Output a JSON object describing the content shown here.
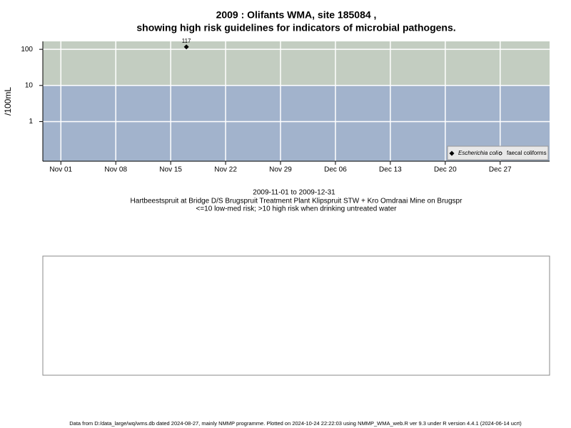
{
  "chart_data": {
    "type": "scatter",
    "title": "2009 : Olifants WMA, site 185084 ,",
    "title2": "showing high risk guidelines for indicators of microbial pathogens.",
    "ylabel": "/100mL",
    "log_y": true,
    "ylim": [
      0.08,
      166
    ],
    "yticks": [
      1,
      10,
      100
    ],
    "threshold": 10,
    "band_colors": {
      "high": "#c3cdc1",
      "low": "#a2b3cc"
    },
    "xlim": [
      -2.3,
      62.3
    ],
    "xticks": [
      {
        "value": 0,
        "label": "Nov 01"
      },
      {
        "value": 7,
        "label": "Nov 08"
      },
      {
        "value": 14,
        "label": "Nov 15"
      },
      {
        "value": 21,
        "label": "Nov 22"
      },
      {
        "value": 28,
        "label": "Nov 29"
      },
      {
        "value": 35,
        "label": "Dec 06"
      },
      {
        "value": 42,
        "label": "Dec 13"
      },
      {
        "value": 49,
        "label": "Dec 20"
      },
      {
        "value": 56,
        "label": "Dec 27"
      }
    ],
    "grid": true,
    "legend": "bottom-right",
    "series": [
      {
        "name": "Escherichia coli",
        "color": "#000000",
        "marker": "diamond",
        "x": [
          16
        ],
        "values": [
          117
        ],
        "value_labels": [
          "117"
        ]
      },
      {
        "name": "faecal coliforms",
        "color": "#000000",
        "marker": "open-circle",
        "x": [],
        "values": []
      }
    ],
    "subtitle": [
      "2009-11-01 to 2009-12-31",
      "Hartbeestspruit at Bridge D/S Brugspruit Treatment Plant Klipspruit STW + Kro Omdraai Mine on Brugspr",
      "<=10 low-med risk; >10 high risk when drinking untreated water"
    ],
    "footer": "Data from D:/data_large/wq/wms.db dated 2024-08-27, mainly NMMP programme. Plotted on 2024-10-24 22:22:03 using NMMP_WMA_web.R ver 9.3 under R version 4.4.1 (2024-06-14 ucrt)"
  }
}
